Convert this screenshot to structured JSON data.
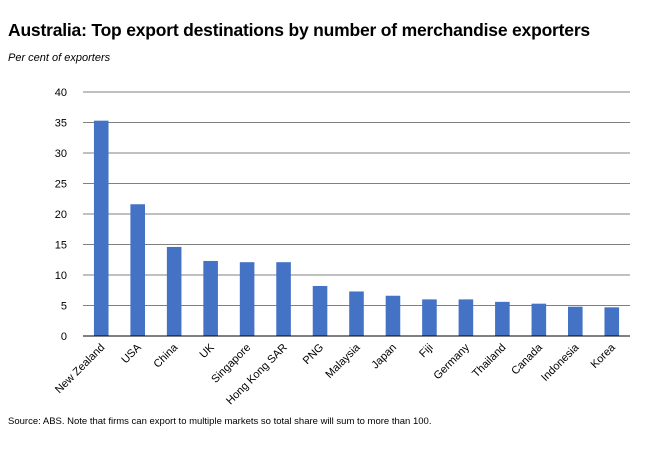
{
  "title": "Australia: Top export destinations by number of merchandise exporters",
  "subtitle": "Per cent of exporters",
  "source": "Source: ABS. Note that firms can export to multiple markets so total share will sum to more than 100.",
  "colors": {
    "bar": "#4472C4",
    "grid": "#808080",
    "axis": "#000000"
  },
  "chart_data": {
    "type": "bar",
    "title": "Australia: Top export destinations by number of merchandise exporters",
    "ylabel": "Per cent of exporters",
    "xlabel": "",
    "ylim": [
      0,
      40
    ],
    "yticks": [
      0,
      5,
      10,
      15,
      20,
      25,
      30,
      35,
      40
    ],
    "grid": true,
    "legend": "none",
    "categories": [
      "New Zealand",
      "USA",
      "China",
      "UK",
      "Singapore",
      "Hong Kong SAR",
      "PNG",
      "Malaysia",
      "Japan",
      "Fiji",
      "Germany",
      "Thailand",
      "Canada",
      "Indonesia",
      "Korea"
    ],
    "values": [
      35.3,
      21.6,
      14.6,
      12.3,
      12.1,
      12.1,
      8.2,
      7.3,
      6.6,
      6.0,
      6.0,
      5.6,
      5.3,
      4.8,
      4.7
    ]
  }
}
